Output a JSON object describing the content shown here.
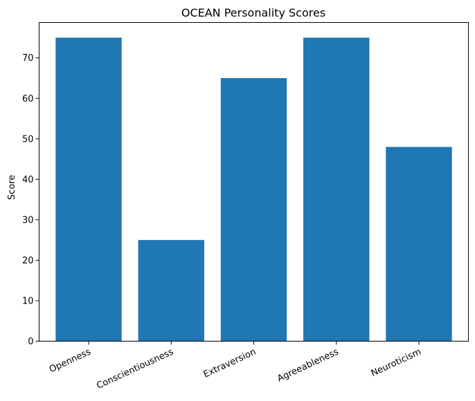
{
  "chart_data": {
    "type": "bar",
    "title": "OCEAN Personality Scores",
    "xlabel": "",
    "ylabel": "Score",
    "categories": [
      "Openness",
      "Conscientiousness",
      "Extraversion",
      "Agreeableness",
      "Neuroticism"
    ],
    "values": [
      75,
      25,
      65,
      75,
      48
    ],
    "ylim": [
      0,
      78.75
    ],
    "yticks": [
      0,
      10,
      20,
      30,
      40,
      50,
      60,
      70
    ],
    "bar_color": "#1f77b4",
    "grid": false,
    "x_tick_rotation_deg": -25
  }
}
